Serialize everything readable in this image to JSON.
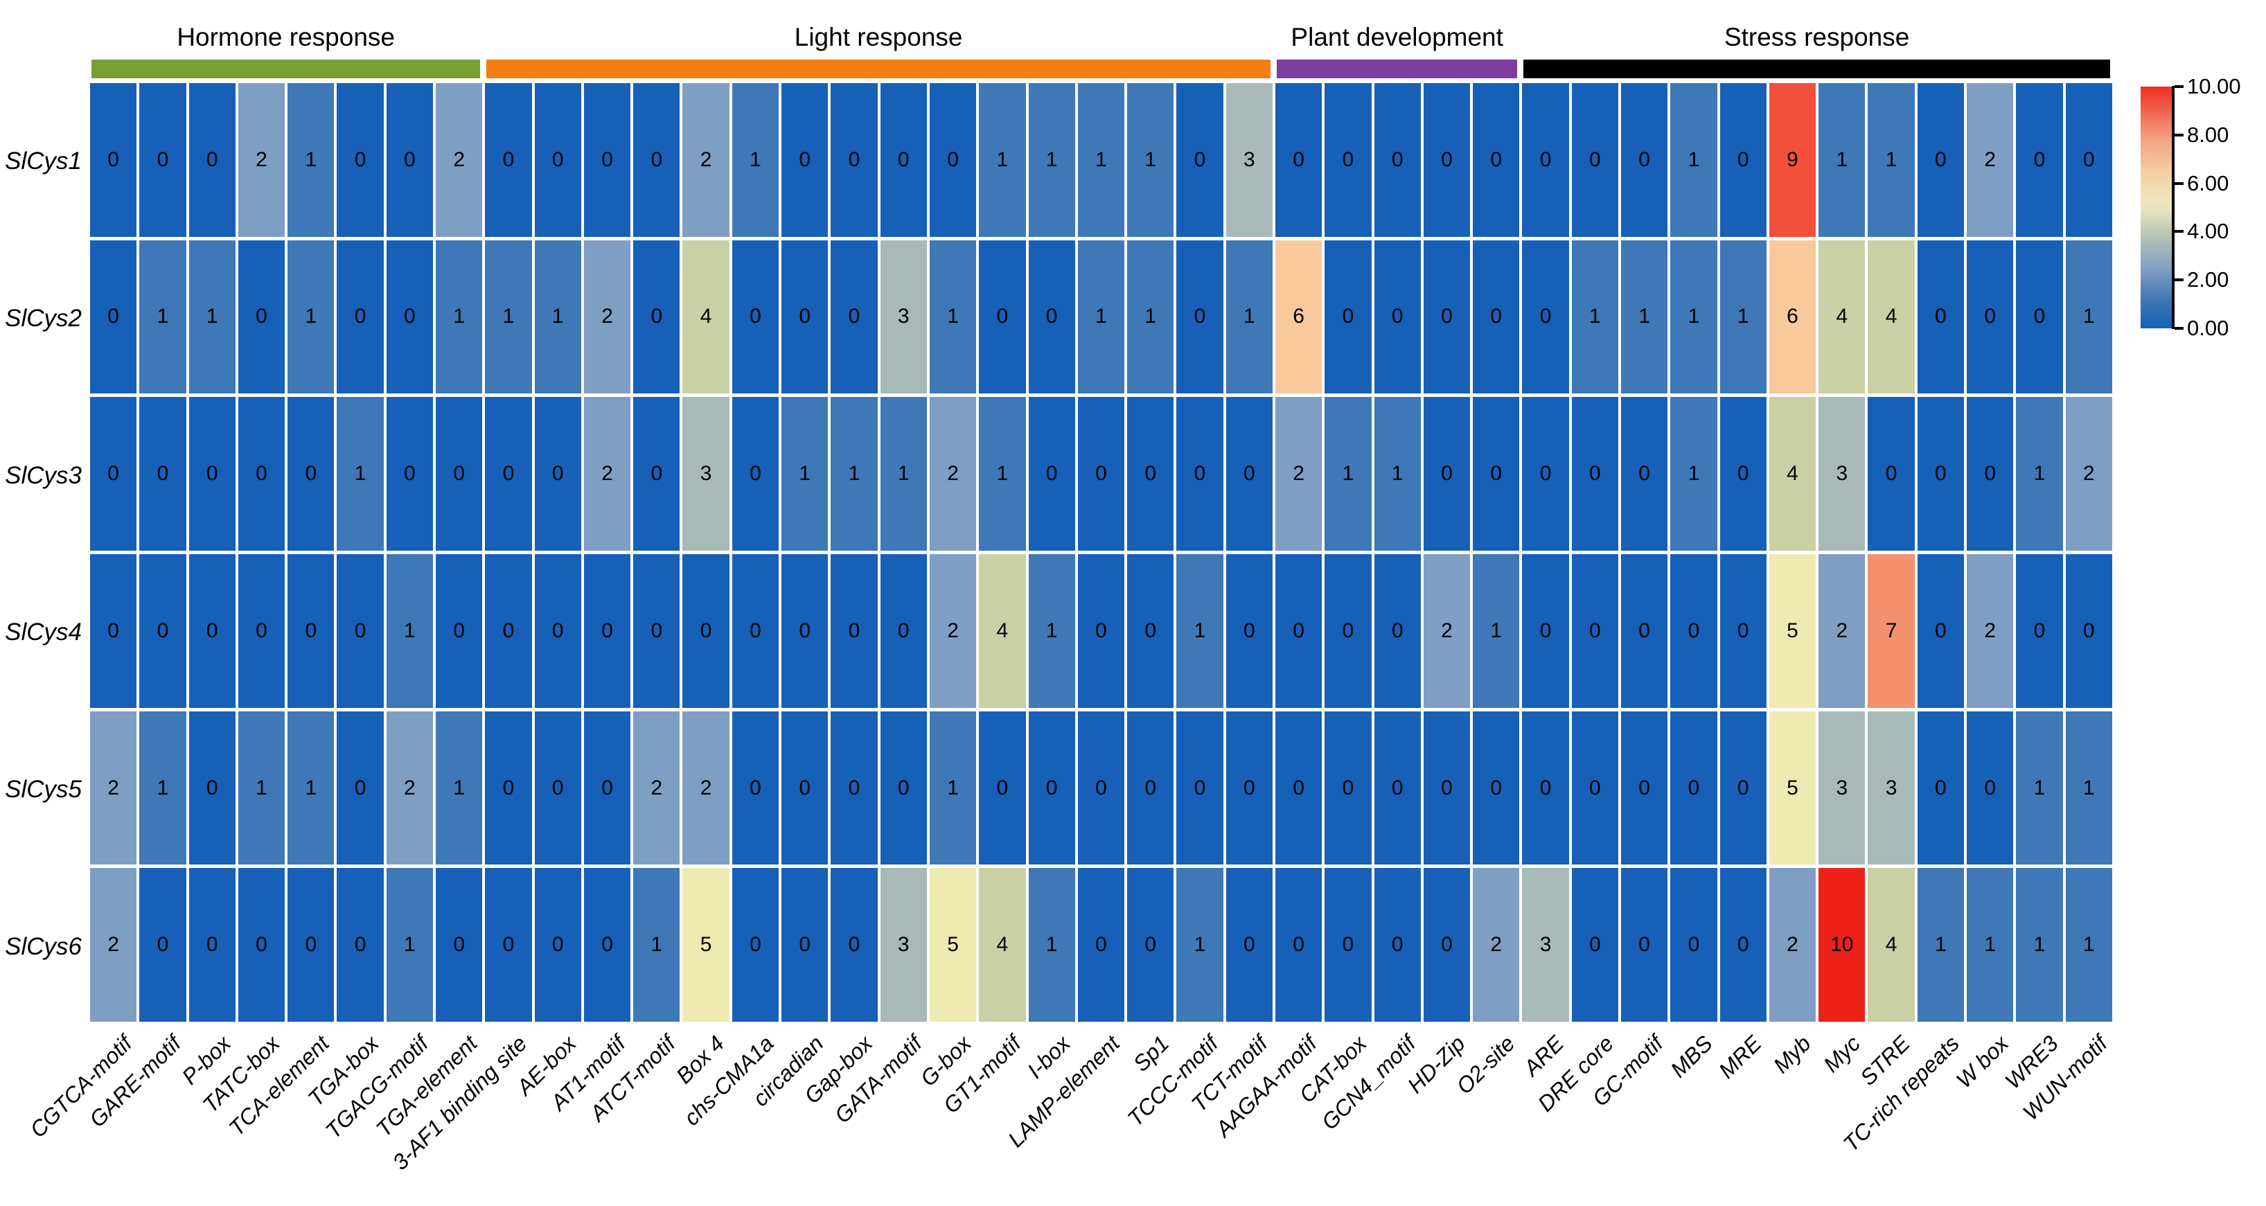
{
  "chart_data": {
    "type": "heatmap",
    "title": "",
    "rows": [
      "SlCys1",
      "SlCys2",
      "SlCys3",
      "SlCys4",
      "SlCys5",
      "SlCys6"
    ],
    "columns": [
      "CGTCA-motif",
      "GARE-motif",
      "P-box",
      "TATC-box",
      "TCA-element",
      "TGA-box",
      "TGACG-motif",
      "TGA-element",
      "3-AF1 binding site",
      "AE-box",
      "AT1-motif",
      "ATCT-motif",
      "Box 4",
      "chs-CMA1a",
      "circadian",
      "Gap-box",
      "GATA-motif",
      "G-box",
      "GT1-motif",
      "I-box",
      "LAMP-element",
      "Sp1",
      "TCCC-motif",
      "TCT-motif",
      "AAGAA-motif",
      "CAT-box",
      "GCN4_motif",
      "HD-Zip",
      "O2-site",
      "ARE",
      "DRE core",
      "GC-motif",
      "MBS",
      "MRE",
      "Myb",
      "Myc",
      "STRE",
      "TC-rich repeats",
      "W box",
      "WRE3",
      "WUN-motif"
    ],
    "column_groups": [
      {
        "label": "Hormone response",
        "color": "#76a132",
        "start": 0,
        "count": 8
      },
      {
        "label": "Light response",
        "color": "#f57d11",
        "start": 8,
        "count": 16
      },
      {
        "label": "Plant development",
        "color": "#7e3d9c",
        "start": 24,
        "count": 5
      },
      {
        "label": "Stress response",
        "color": "#000000",
        "start": 29,
        "count": 12
      }
    ],
    "values": [
      [
        0,
        0,
        0,
        2,
        1,
        0,
        0,
        2,
        0,
        0,
        0,
        0,
        2,
        1,
        0,
        0,
        0,
        0,
        1,
        1,
        1,
        1,
        0,
        3,
        0,
        0,
        0,
        0,
        0,
        0,
        0,
        0,
        1,
        0,
        9,
        1,
        1,
        0,
        2,
        0,
        0
      ],
      [
        0,
        1,
        1,
        0,
        1,
        0,
        0,
        1,
        1,
        1,
        2,
        0,
        4,
        0,
        0,
        0,
        3,
        1,
        0,
        0,
        1,
        1,
        0,
        1,
        6,
        0,
        0,
        0,
        0,
        0,
        1,
        1,
        1,
        1,
        6,
        4,
        4,
        0,
        0,
        0,
        1
      ],
      [
        0,
        0,
        0,
        0,
        0,
        1,
        0,
        0,
        0,
        0,
        2,
        0,
        3,
        0,
        1,
        1,
        1,
        2,
        1,
        0,
        0,
        0,
        0,
        0,
        2,
        1,
        1,
        0,
        0,
        0,
        0,
        0,
        1,
        0,
        4,
        3,
        0,
        0,
        0,
        1,
        2
      ],
      [
        0,
        0,
        0,
        0,
        0,
        0,
        1,
        0,
        0,
        0,
        0,
        0,
        0,
        0,
        0,
        0,
        0,
        2,
        4,
        1,
        0,
        0,
        1,
        0,
        0,
        0,
        0,
        2,
        1,
        0,
        0,
        0,
        0,
        0,
        5,
        2,
        7,
        0,
        2,
        0,
        0
      ],
      [
        2,
        1,
        0,
        1,
        1,
        0,
        2,
        1,
        0,
        0,
        0,
        2,
        2,
        0,
        0,
        0,
        0,
        1,
        0,
        0,
        0,
        0,
        0,
        0,
        0,
        0,
        0,
        0,
        0,
        0,
        0,
        0,
        0,
        0,
        5,
        3,
        3,
        0,
        0,
        1,
        1
      ],
      [
        2,
        0,
        0,
        0,
        0,
        0,
        1,
        0,
        0,
        0,
        0,
        1,
        5,
        0,
        0,
        0,
        3,
        5,
        4,
        1,
        0,
        0,
        1,
        0,
        0,
        0,
        0,
        0,
        2,
        3,
        0,
        0,
        0,
        0,
        2,
        10,
        4,
        1,
        1,
        1,
        1
      ]
    ],
    "value_palette": {
      "0": "#1760b8",
      "1": "#3e78b7",
      "2": "#7f9ec4",
      "3": "#a7bab8",
      "4": "#c9d0a4",
      "5": "#efe9b2",
      "6": "#f7c99b",
      "7": "#f4916c",
      "8": "#f4a382",
      "9": "#f3503b",
      "10": "#ee2119"
    },
    "colorbar": {
      "min": 0,
      "max": 10,
      "ticks": [
        {
          "value": 0,
          "label": "0.00"
        },
        {
          "value": 2,
          "label": "2.00"
        },
        {
          "value": 4,
          "label": "4.00"
        },
        {
          "value": 6,
          "label": "6.00"
        },
        {
          "value": 8,
          "label": "8.00"
        },
        {
          "value": 10,
          "label": "10.00"
        }
      ],
      "gradient_stops": [
        {
          "pos": 0,
          "color": "#1660b6"
        },
        {
          "pos": 12,
          "color": "#3f77b4"
        },
        {
          "pos": 25,
          "color": "#84a0c2"
        },
        {
          "pos": 38,
          "color": "#b5c2b4"
        },
        {
          "pos": 48,
          "color": "#e3e2bc"
        },
        {
          "pos": 53,
          "color": "#efe6bc"
        },
        {
          "pos": 65,
          "color": "#f5cda2"
        },
        {
          "pos": 78,
          "color": "#f4a384"
        },
        {
          "pos": 92,
          "color": "#f05844"
        },
        {
          "pos": 100,
          "color": "#ee2e20"
        }
      ]
    }
  }
}
